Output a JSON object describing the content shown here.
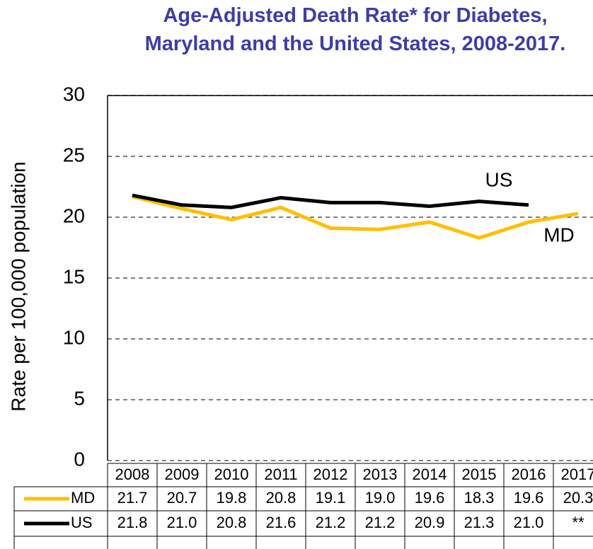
{
  "chart_data": {
    "type": "line",
    "title": "Age-Adjusted Death Rate* for Diabetes, Maryland and the United States, 2008-2017.",
    "y_label": "Rate per 100,000 population",
    "categories": [
      "2008",
      "2009",
      "2010",
      "2011",
      "2012",
      "2013",
      "2014",
      "2015",
      "2016",
      "2017"
    ],
    "series": [
      {
        "name": "MD",
        "color": "#ffc000",
        "values": [
          21.7,
          20.7,
          19.8,
          20.8,
          19.1,
          19.0,
          19.6,
          18.3,
          19.6,
          20.3
        ],
        "value_labels": [
          "21.7",
          "20.7",
          "19.8",
          "20.8",
          "19.1",
          "19.0",
          "19.6",
          "18.3",
          "19.6",
          "20.3"
        ]
      },
      {
        "name": "US",
        "color": "#000000",
        "values": [
          21.8,
          21.0,
          20.8,
          21.6,
          21.2,
          21.2,
          20.9,
          21.3,
          21.0,
          null
        ],
        "value_labels": [
          "21.8",
          "21.0",
          "20.8",
          "21.6",
          "21.2",
          "21.2",
          "20.9",
          "21.3",
          "21.0",
          "**"
        ]
      }
    ],
    "ylim": [
      0,
      30
    ],
    "yticks": [
      0,
      5,
      10,
      15,
      20,
      25,
      30
    ],
    "grid": true
  }
}
